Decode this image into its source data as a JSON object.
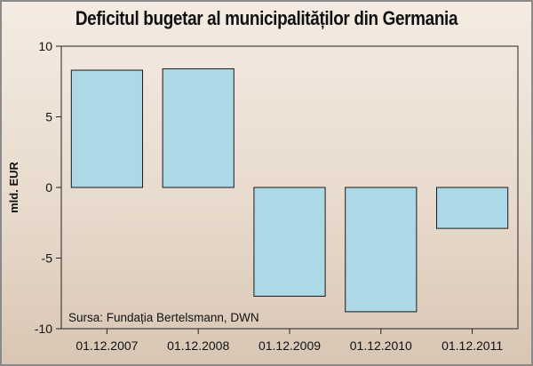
{
  "chart_data": {
    "type": "bar",
    "title": "Deficitul bugetar al municipalităților din Germania",
    "ylabel": "mld. EUR",
    "xlabel": "",
    "categories": [
      "01.12.2007",
      "01.12.2008",
      "01.12.2009",
      "01.12.2010",
      "01.12.2011"
    ],
    "values": [
      8.3,
      8.4,
      -7.7,
      -8.8,
      -2.9
    ],
    "ylim": [
      -10,
      10
    ],
    "yticks": [
      10,
      5,
      0,
      -5,
      -10
    ],
    "source": "Sursa: Fundația Bertelsmann, DWN",
    "bar_color": "#add8e6",
    "grid": false
  }
}
